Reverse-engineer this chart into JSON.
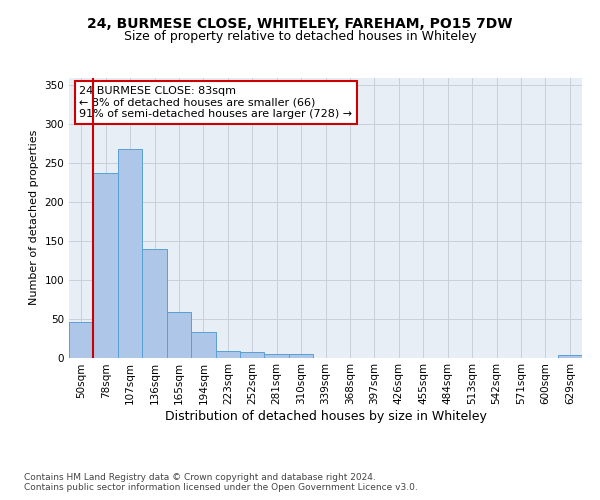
{
  "title": "24, BURMESE CLOSE, WHITELEY, FAREHAM, PO15 7DW",
  "subtitle": "Size of property relative to detached houses in Whiteley",
  "xlabel": "Distribution of detached houses by size in Whiteley",
  "ylabel": "Number of detached properties",
  "bin_labels": [
    "50sqm",
    "78sqm",
    "107sqm",
    "136sqm",
    "165sqm",
    "194sqm",
    "223sqm",
    "252sqm",
    "281sqm",
    "310sqm",
    "339sqm",
    "368sqm",
    "397sqm",
    "426sqm",
    "455sqm",
    "484sqm",
    "513sqm",
    "542sqm",
    "571sqm",
    "600sqm",
    "629sqm"
  ],
  "bar_heights": [
    46,
    237,
    268,
    139,
    58,
    33,
    9,
    7,
    4,
    4,
    0,
    0,
    0,
    0,
    0,
    0,
    0,
    0,
    0,
    0,
    3
  ],
  "bar_color": "#aec6e8",
  "bar_edge_color": "#5a9fd4",
  "vline_color": "#cc0000",
  "annotation_text": "24 BURMESE CLOSE: 83sqm\n← 8% of detached houses are smaller (66)\n91% of semi-detached houses are larger (728) →",
  "annotation_box_color": "#ffffff",
  "annotation_box_edge_color": "#cc0000",
  "ylim": [
    0,
    360
  ],
  "yticks": [
    0,
    50,
    100,
    150,
    200,
    250,
    300,
    350
  ],
  "grid_color": "#c8d0dc",
  "bg_color": "#e8eef5",
  "footer_line1": "Contains HM Land Registry data © Crown copyright and database right 2024.",
  "footer_line2": "Contains public sector information licensed under the Open Government Licence v3.0.",
  "title_fontsize": 10,
  "subtitle_fontsize": 9,
  "xlabel_fontsize": 9,
  "ylabel_fontsize": 8,
  "tick_fontsize": 7.5,
  "annotation_fontsize": 8,
  "footer_fontsize": 6.5
}
